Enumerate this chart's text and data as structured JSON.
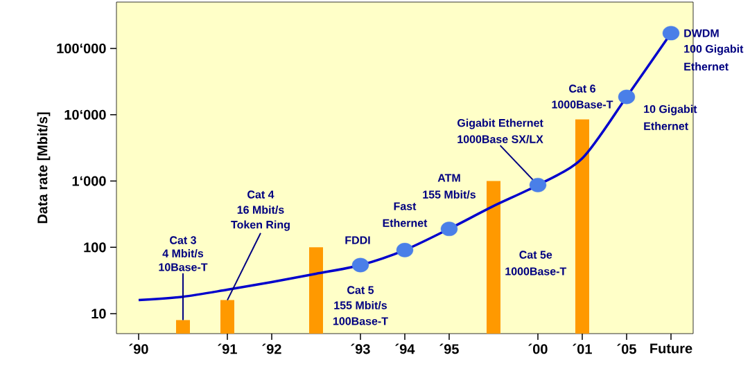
{
  "chart_data": {
    "type": "bar",
    "ylabel": "Data rate [Mbit/s]",
    "log": "y",
    "ylim": [
      5,
      500000
    ],
    "categories": [
      "´90",
      null,
      "´91",
      "´92",
      null,
      "´93",
      "´94",
      "´95",
      null,
      "´00",
      "´01",
      "´05",
      "Future"
    ],
    "yticks": [
      10,
      100,
      {
        "value": 1000,
        "label": "1‘000"
      },
      {
        "value": 10000,
        "label": "10‘000"
      },
      {
        "value": 100000,
        "label": "100‘000"
      }
    ],
    "series": [
      {
        "color": "#ff9900",
        "values": [
          null,
          8,
          16,
          null,
          100,
          null,
          null,
          null,
          1000,
          null,
          8500,
          null,
          null
        ]
      },
      {
        "type": "line",
        "color": "#0000cc",
        "values": [
          16,
          18,
          23,
          30,
          40,
          54,
          91,
          190,
          420,
          870,
          2200,
          18600,
          170000
        ]
      },
      {
        "type": "scatter",
        "color": "#4a7fe8",
        "marker": "circle",
        "values": [
          null,
          null,
          null,
          null,
          null,
          54,
          91,
          190,
          null,
          870,
          null,
          18600,
          170000
        ]
      }
    ],
    "annotations": [
      "Cat 3",
      "4 Mbit/s",
      {
        "text": "10Base-T",
        "y": 8
      },
      "Cat 4",
      "16 Mbit/s",
      {
        "text": "Token Ring",
        "x": "´91",
        "y": 16
      },
      "FDDI",
      "Cat 5",
      "155 Mbit/s",
      "100Base-T",
      "Fast",
      "Ethernet",
      "ATM",
      "155 Mbit/s",
      "Gigabit Ethernet",
      {
        "text": "1000Base SX/LX",
        "x": "´00",
        "y": 870
      },
      "Cat 5e",
      "1000Base-T",
      "Cat 6",
      "1000Base-T",
      "10 Gigabit",
      "Ethernet",
      "DWDM",
      "100 Gigabit",
      "Ethernet"
    ]
  }
}
